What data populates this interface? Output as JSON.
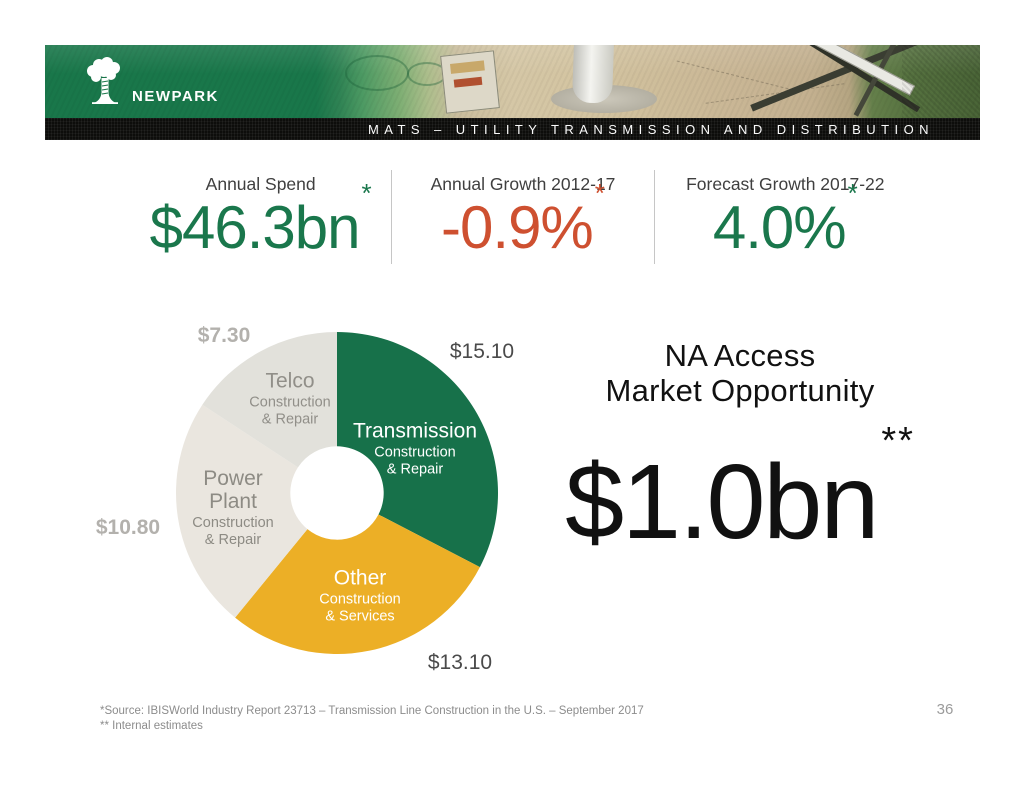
{
  "header": {
    "logo_text": "NEWPARK",
    "bar_title": "MATS – UTILITY TRANSMISSION AND DISTRIBUTION"
  },
  "stats": [
    {
      "label": "Annual Spend",
      "value": "$46.3bn",
      "note_mark": "*",
      "color": "#1A774C"
    },
    {
      "label": "Annual Growth 2012-17",
      "value": "-0.9%",
      "note_mark": "*",
      "color": "#CE5030"
    },
    {
      "label": "Forecast Growth 2017-22",
      "value": "4.0%",
      "note_mark": "*",
      "color": "#1A774C"
    }
  ],
  "opportunity": {
    "title_line1": "NA Access",
    "title_line2": "Market Opportunity",
    "value": "$1.0bn",
    "note_mark": "**"
  },
  "chart_data": {
    "type": "pie",
    "subtype": "donut",
    "units": "USD billions",
    "total": 46.3,
    "start_angle_deg": 0,
    "direction": "clockwise",
    "legend": "none",
    "donut_hole_ratio": 0.29,
    "slices": [
      {
        "label": "Transmission",
        "sub_lines": [
          "Construction",
          "& Repair"
        ],
        "value": 15.1,
        "display_value": "$15.10",
        "color": "#17714A",
        "label_color": "#FFFFFF"
      },
      {
        "label": "Other",
        "sub_lines": [
          "Construction",
          "& Services"
        ],
        "value": 13.1,
        "display_value": "$13.10",
        "color": "#ECAF26",
        "label_color": "#FFFFFF"
      },
      {
        "label": "Power Plant",
        "sub_lines": [
          "Construction",
          "& Repair"
        ],
        "value": 10.8,
        "display_value": "$10.80",
        "color": "#EAE6DF",
        "label_color": "#8D8B84"
      },
      {
        "label": "Telco",
        "sub_lines": [
          "Construction",
          "& Repair"
        ],
        "value": 7.3,
        "display_value": "$7.30",
        "color": "#E2E1DB",
        "label_color": "#918F89"
      }
    ]
  },
  "footer": {
    "source_line": "*Source: IBISWorld Industry Report 23713 – Transmission Line Construction in the U.S. – September 2017",
    "estimates_line": "** Internal estimates",
    "page_number": "36"
  }
}
